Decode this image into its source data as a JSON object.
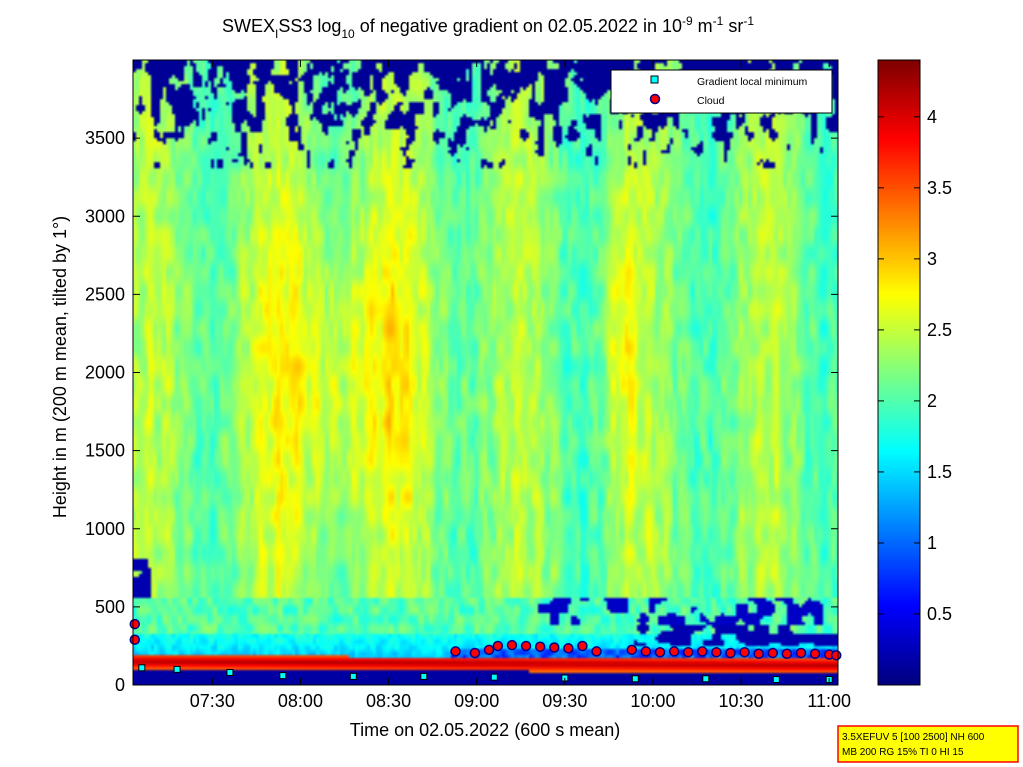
{
  "chart_data": {
    "type": "heatmap",
    "title": {
      "main": "SWEX",
      "sub_i": "I",
      "rest1": "SS3 log",
      "sub_10": "10",
      "rest2": " of negative gradient on 02.05.2022 in 10",
      "sup_m9": "-9",
      "unit_m": " m",
      "sup_m1a": "-1",
      "unit_sr": " sr",
      "sup_m1b": "-1"
    },
    "xlabel": "Time on 02.05.2022 (600 s mean)",
    "ylabel": "Height in m (200 m mean, tilted by 1°)",
    "x_ticks": [
      "07:30",
      "08:00",
      "08:30",
      "09:00",
      "09:30",
      "10:00",
      "10:30",
      "11:00"
    ],
    "x_tick_hours": [
      7.5,
      8.0,
      8.5,
      9.0,
      9.5,
      10.0,
      10.5,
      11.0
    ],
    "xlim_hours": [
      7.05,
      11.05
    ],
    "y_ticks": [
      0,
      500,
      1000,
      1500,
      2000,
      2500,
      3000,
      3500
    ],
    "ylim": [
      0,
      4000
    ],
    "colorbar": {
      "ticks": [
        0.5,
        1,
        1.5,
        2,
        2.5,
        3,
        3.5,
        4
      ],
      "tick_labels": [
        "0.5",
        "1",
        "1.5",
        "2",
        "2.5",
        "3",
        "3.5",
        "4"
      ],
      "range": [
        0,
        4.4
      ],
      "colormap": "jet"
    },
    "legend": {
      "placement": "top-right",
      "entries": [
        {
          "label": "Gradient local minimum",
          "marker": "square",
          "color": "#00ffff"
        },
        {
          "label": "Cloud",
          "marker": "circle",
          "color": "#ff0000"
        }
      ]
    },
    "cloud_points": [
      {
        "t": 7.06,
        "h": 390
      },
      {
        "t": 7.06,
        "h": 290
      },
      {
        "t": 8.88,
        "h": 215
      },
      {
        "t": 8.99,
        "h": 205
      },
      {
        "t": 9.07,
        "h": 225
      },
      {
        "t": 9.12,
        "h": 250
      },
      {
        "t": 9.2,
        "h": 255
      },
      {
        "t": 9.28,
        "h": 250
      },
      {
        "t": 9.36,
        "h": 245
      },
      {
        "t": 9.44,
        "h": 240
      },
      {
        "t": 9.52,
        "h": 235
      },
      {
        "t": 9.6,
        "h": 250
      },
      {
        "t": 9.68,
        "h": 215
      },
      {
        "t": 9.88,
        "h": 225
      },
      {
        "t": 9.96,
        "h": 215
      },
      {
        "t": 10.04,
        "h": 210
      },
      {
        "t": 10.12,
        "h": 215
      },
      {
        "t": 10.2,
        "h": 210
      },
      {
        "t": 10.28,
        "h": 215
      },
      {
        "t": 10.36,
        "h": 210
      },
      {
        "t": 10.44,
        "h": 205
      },
      {
        "t": 10.52,
        "h": 210
      },
      {
        "t": 10.6,
        "h": 200
      },
      {
        "t": 10.68,
        "h": 205
      },
      {
        "t": 10.76,
        "h": 200
      },
      {
        "t": 10.84,
        "h": 205
      },
      {
        "t": 10.92,
        "h": 200
      },
      {
        "t": 11.0,
        "h": 195
      },
      {
        "t": 11.04,
        "h": 190
      }
    ],
    "min_gradient_points": [
      {
        "t": 7.1,
        "h": 110
      },
      {
        "t": 7.3,
        "h": 100
      },
      {
        "t": 7.6,
        "h": 80
      },
      {
        "t": 7.9,
        "h": 60
      },
      {
        "t": 8.3,
        "h": 55
      },
      {
        "t": 8.7,
        "h": 55
      },
      {
        "t": 9.1,
        "h": 50
      },
      {
        "t": 9.5,
        "h": 45
      },
      {
        "t": 9.9,
        "h": 40
      },
      {
        "t": 10.3,
        "h": 40
      },
      {
        "t": 10.7,
        "h": 35
      },
      {
        "t": 11.0,
        "h": 35
      }
    ],
    "field": {
      "peak_value": 2.9,
      "peak_time": 8.25,
      "peak_height": 2000,
      "surface_layer_value": 4.2,
      "upper_noise_value": 0.1
    }
  },
  "footer_box": {
    "line1": "3.5XEFUV 5 [100 2500] NH 600",
    "line2": "MB 200 RG 15% TI 0 HI 15"
  }
}
